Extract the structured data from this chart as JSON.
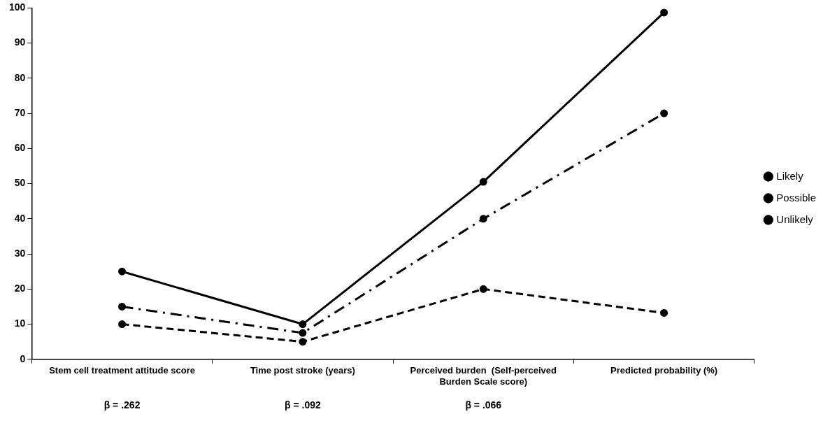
{
  "chart_data": {
    "type": "line",
    "categories": [
      "Stem cell treatment attitude score",
      "Time post stroke (years)",
      "Perceived burden  (Self-perceived\nBurden Scale score)",
      "Predicted probability (%)"
    ],
    "series": [
      {
        "name": "Likely",
        "color": "#000000",
        "values": [
          25,
          10,
          50.5,
          98.7
        ],
        "line_style": "solid"
      },
      {
        "name": "Possible",
        "color": "#000000",
        "values": [
          15,
          7.5,
          40,
          70
        ],
        "line_style": "dashdot"
      },
      {
        "name": "Unlikely",
        "color": "#000000",
        "values": [
          10,
          5,
          20,
          13.2
        ],
        "line_style": "dashed"
      }
    ],
    "ylim": [
      0,
      100
    ],
    "yticks": [
      0,
      10,
      20,
      30,
      40,
      50,
      60,
      70,
      80,
      90,
      100
    ],
    "grid": false,
    "legend": "right",
    "marker": "circle",
    "annotations": [
      "β = .262",
      "β = .092",
      "β = .066"
    ]
  }
}
